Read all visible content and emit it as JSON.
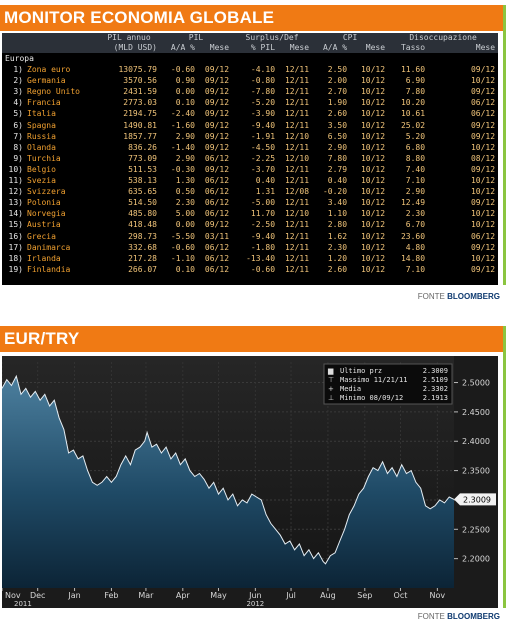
{
  "monitor": {
    "title": "MONITOR ECONOMIA GLOBALE",
    "source_prefix": "FONTE",
    "source_brand": "BLOOMBERG",
    "group_header": [
      "",
      "PIL annuo",
      "PIL",
      "Surplus/Def",
      "CPI",
      "Disoccupazione"
    ],
    "column_header": [
      "",
      "(MLD USD)",
      "A/A %",
      "Mese",
      "% PIL",
      "Mese",
      "A/A %",
      "Mese",
      "Tasso",
      "Mese"
    ],
    "region_label": "Europa",
    "rows": [
      [
        "1)",
        "Zona euro",
        "13075.79",
        "-0.60",
        "09/12",
        "-4.10",
        "12/11",
        "2.50",
        "10/12",
        "11.60",
        "09/12"
      ],
      [
        "2)",
        "Germania",
        "3570.56",
        "0.90",
        "09/12",
        "-0.80",
        "12/11",
        "2.00",
        "10/12",
        "6.90",
        "10/12"
      ],
      [
        "3)",
        "Regno Unito",
        "2431.59",
        "0.00",
        "09/12",
        "-7.80",
        "12/11",
        "2.70",
        "10/12",
        "7.80",
        "09/12"
      ],
      [
        "4)",
        "Francia",
        "2773.03",
        "0.10",
        "09/12",
        "-5.20",
        "12/11",
        "1.90",
        "10/12",
        "10.20",
        "06/12"
      ],
      [
        "5)",
        "Italia",
        "2194.75",
        "-2.40",
        "09/12",
        "-3.90",
        "12/11",
        "2.60",
        "10/12",
        "10.61",
        "06/12"
      ],
      [
        "6)",
        "Spagna",
        "1490.81",
        "-1.60",
        "09/12",
        "-9.40",
        "12/11",
        "3.50",
        "10/12",
        "25.02",
        "09/12"
      ],
      [
        "7)",
        "Russia",
        "1857.77",
        "2.90",
        "09/12",
        "-1.91",
        "12/10",
        "6.50",
        "10/12",
        "5.20",
        "09/12"
      ],
      [
        "8)",
        "Olanda",
        "836.26",
        "-1.40",
        "09/12",
        "-4.50",
        "12/11",
        "2.90",
        "10/12",
        "6.80",
        "10/12"
      ],
      [
        "9)",
        "Turchia",
        "773.09",
        "2.90",
        "06/12",
        "-2.25",
        "12/10",
        "7.80",
        "10/12",
        "8.80",
        "08/12"
      ],
      [
        "10)",
        "Belgio",
        "511.53",
        "-0.30",
        "09/12",
        "-3.70",
        "12/11",
        "2.79",
        "10/12",
        "7.40",
        "09/12"
      ],
      [
        "11)",
        "Svezia",
        "538.13",
        "1.30",
        "06/12",
        "0.40",
        "12/11",
        "0.40",
        "10/12",
        "7.10",
        "10/12"
      ],
      [
        "12)",
        "Svizzera",
        "635.65",
        "0.50",
        "06/12",
        "1.31",
        "12/08",
        "-0.20",
        "10/12",
        "2.90",
        "10/12"
      ],
      [
        "13)",
        "Polonia",
        "514.50",
        "2.30",
        "06/12",
        "-5.00",
        "12/11",
        "3.40",
        "10/12",
        "12.49",
        "09/12"
      ],
      [
        "14)",
        "Norvegia",
        "485.80",
        "5.00",
        "06/12",
        "11.70",
        "12/10",
        "1.10",
        "10/12",
        "2.30",
        "10/12"
      ],
      [
        "15)",
        "Austria",
        "418.48",
        "0.00",
        "09/12",
        "-2.50",
        "12/11",
        "2.80",
        "10/12",
        "6.70",
        "10/12"
      ],
      [
        "16)",
        "Grecia",
        "298.73",
        "-5.50",
        "03/11",
        "-9.40",
        "12/11",
        "1.62",
        "10/12",
        "23.60",
        "06/12"
      ],
      [
        "17)",
        "Danimarca",
        "332.68",
        "-0.60",
        "06/12",
        "-1.80",
        "12/11",
        "2.30",
        "10/12",
        "4.80",
        "09/12"
      ],
      [
        "18)",
        "Irlanda",
        "217.28",
        "-1.10",
        "06/12",
        "-13.40",
        "12/11",
        "1.20",
        "10/12",
        "14.80",
        "10/12"
      ],
      [
        "19)",
        "Finlandia",
        "266.07",
        "0.10",
        "06/12",
        "-0.60",
        "12/11",
        "2.60",
        "10/12",
        "7.10",
        "09/12"
      ]
    ]
  },
  "eurtry": {
    "title": "EUR/TRY",
    "source_prefix": "FONTE",
    "source_brand": "BLOOMBERG",
    "legend": [
      {
        "label": "Ultimo prz",
        "value": "2.3009"
      },
      {
        "label": "Massimo 11/21/11",
        "value": "2.5109"
      },
      {
        "label": "Media",
        "value": "2.3302"
      },
      {
        "label": "Minimo 08/09/12",
        "value": "2.1913"
      }
    ],
    "last_price_tag": "2.3009"
  },
  "chart_data": {
    "type": "area",
    "title": "EUR/TRY",
    "xlabel": "",
    "ylabel": "",
    "ylim": [
      2.15,
      2.535
    ],
    "yticks": [
      "2.5000",
      "2.4500",
      "2.4000",
      "2.3500",
      "2.3000",
      "2.2500",
      "2.2000"
    ],
    "ytick_values": [
      2.5,
      2.45,
      2.4,
      2.35,
      2.3,
      2.25,
      2.2
    ],
    "xticks": [
      {
        "label": "Nov",
        "sub": "2011",
        "t": 0
      },
      {
        "label": "Dec",
        "sub": "",
        "t": 30
      },
      {
        "label": "Jan",
        "sub": "",
        "t": 61
      },
      {
        "label": "Feb",
        "sub": "",
        "t": 92
      },
      {
        "label": "Mar",
        "sub": "",
        "t": 121
      },
      {
        "label": "Apr",
        "sub": "",
        "t": 152
      },
      {
        "label": "May",
        "sub": "",
        "t": 182
      },
      {
        "label": "Jun",
        "sub": "2012",
        "t": 213
      },
      {
        "label": "Jul",
        "sub": "",
        "t": 243
      },
      {
        "label": "Aug",
        "sub": "",
        "t": 274
      },
      {
        "label": "Sep",
        "sub": "",
        "t": 305
      },
      {
        "label": "Oct",
        "sub": "",
        "t": 335
      },
      {
        "label": "Nov",
        "sub": "",
        "t": 366
      }
    ],
    "x_end": 380,
    "series": [
      {
        "points": [
          [
            0,
            2.49
          ],
          [
            4,
            2.505
          ],
          [
            8,
            2.495
          ],
          [
            12,
            2.5109
          ],
          [
            16,
            2.48
          ],
          [
            20,
            2.49
          ],
          [
            24,
            2.475
          ],
          [
            28,
            2.485
          ],
          [
            32,
            2.47
          ],
          [
            36,
            2.48
          ],
          [
            40,
            2.46
          ],
          [
            44,
            2.47
          ],
          [
            48,
            2.44
          ],
          [
            52,
            2.42
          ],
          [
            56,
            2.38
          ],
          [
            60,
            2.385
          ],
          [
            64,
            2.37
          ],
          [
            68,
            2.375
          ],
          [
            72,
            2.35
          ],
          [
            76,
            2.33
          ],
          [
            80,
            2.325
          ],
          [
            84,
            2.33
          ],
          [
            88,
            2.34
          ],
          [
            92,
            2.33
          ],
          [
            96,
            2.34
          ],
          [
            100,
            2.36
          ],
          [
            104,
            2.375
          ],
          [
            108,
            2.36
          ],
          [
            112,
            2.385
          ],
          [
            116,
            2.39
          ],
          [
            120,
            2.4
          ],
          [
            122,
            2.415
          ],
          [
            126,
            2.39
          ],
          [
            130,
            2.395
          ],
          [
            134,
            2.38
          ],
          [
            138,
            2.39
          ],
          [
            142,
            2.37
          ],
          [
            146,
            2.38
          ],
          [
            150,
            2.36
          ],
          [
            154,
            2.37
          ],
          [
            158,
            2.35
          ],
          [
            162,
            2.34
          ],
          [
            166,
            2.345
          ],
          [
            170,
            2.335
          ],
          [
            174,
            2.32
          ],
          [
            178,
            2.33
          ],
          [
            182,
            2.31
          ],
          [
            186,
            2.32
          ],
          [
            190,
            2.3
          ],
          [
            194,
            2.31
          ],
          [
            198,
            2.29
          ],
          [
            202,
            2.3
          ],
          [
            206,
            2.295
          ],
          [
            210,
            2.31
          ],
          [
            214,
            2.305
          ],
          [
            218,
            2.3
          ],
          [
            222,
            2.275
          ],
          [
            226,
            2.26
          ],
          [
            230,
            2.25
          ],
          [
            234,
            2.24
          ],
          [
            238,
            2.225
          ],
          [
            242,
            2.23
          ],
          [
            246,
            2.215
          ],
          [
            250,
            2.225
          ],
          [
            254,
            2.205
          ],
          [
            258,
            2.215
          ],
          [
            262,
            2.2
          ],
          [
            266,
            2.21
          ],
          [
            270,
            2.195
          ],
          [
            272,
            2.1913
          ],
          [
            276,
            2.205
          ],
          [
            280,
            2.21
          ],
          [
            284,
            2.23
          ],
          [
            288,
            2.25
          ],
          [
            292,
            2.275
          ],
          [
            296,
            2.29
          ],
          [
            300,
            2.31
          ],
          [
            304,
            2.32
          ],
          [
            308,
            2.34
          ],
          [
            312,
            2.355
          ],
          [
            316,
            2.35
          ],
          [
            320,
            2.365
          ],
          [
            324,
            2.345
          ],
          [
            328,
            2.355
          ],
          [
            332,
            2.34
          ],
          [
            336,
            2.36
          ],
          [
            340,
            2.345
          ],
          [
            344,
            2.35
          ],
          [
            348,
            2.33
          ],
          [
            352,
            2.32
          ],
          [
            356,
            2.29
          ],
          [
            360,
            2.285
          ],
          [
            364,
            2.29
          ],
          [
            368,
            2.3
          ],
          [
            372,
            2.295
          ],
          [
            376,
            2.305
          ],
          [
            380,
            2.3009
          ]
        ]
      }
    ],
    "grid": true,
    "legend_position": "top-right"
  }
}
